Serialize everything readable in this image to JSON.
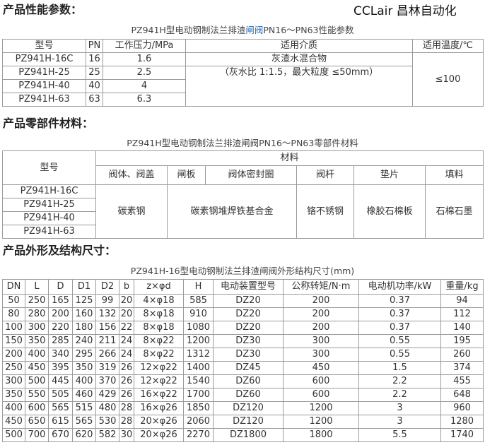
{
  "s1": {
    "heading": "产品性能参数：",
    "caption_a": "PZ941H型电动钢制法兰排渣",
    "caption_b": "闸阀",
    "caption_c": "PN16～PN63性能参数",
    "headers": [
      "型号",
      "PN",
      "工作压力/MPa",
      "适用介质",
      "适用温度/℃"
    ],
    "rows": [
      [
        "PZ941H-16C",
        "16",
        "1.6"
      ],
      [
        "PZ941H-25",
        "25",
        "2.5"
      ],
      [
        "PZ941H-40",
        "40",
        "4"
      ],
      [
        "PZ941H-63",
        "63",
        "6.3"
      ]
    ],
    "medium_line1": "灰渣水混合物",
    "medium_line2": "（灰水比 1:1.5，最大粒度 ≤50mm）",
    "temp": "≤100"
  },
  "s2": {
    "heading": "产品零部件材料：",
    "caption": "PZ941H型电动钢制法兰排渣闸阀PN16～PN63零部件材料",
    "model_header": "型号",
    "material_header": "材料",
    "sub_headers": [
      "阀体、阀盖",
      "闸板",
      "阀体密封圈",
      "阀杆",
      "垫片",
      "填料"
    ],
    "models": [
      "PZ941H-16C",
      "PZ941H-25",
      "PZ941H-40",
      "PZ941H-63"
    ],
    "values": [
      "碳素钢",
      "碳素钢堆焊铁基合金",
      "铬不锈钢",
      "橡胶石棉板",
      "石棉石墨"
    ]
  },
  "s3": {
    "heading": "产品外形及结构尺寸：",
    "caption": "PZ941H-16型电动钢制法兰排渣闸阀外形结构尺寸(mm)",
    "headers": [
      "DN",
      "L",
      "D",
      "D1",
      "D2",
      "b",
      "z×φd",
      "H",
      "电动装置型号",
      "公称转矩/N·m",
      "电动机功率/kW",
      "重量/kg"
    ],
    "rows": [
      [
        "50",
        "250",
        "165",
        "125",
        "99",
        "20",
        "4×φ18",
        "585",
        "DZ20",
        "200",
        "0.37",
        "94"
      ],
      [
        "80",
        "280",
        "200",
        "160",
        "132",
        "20",
        "8×φ18",
        "910",
        "DZ20",
        "200",
        "0.37",
        "112"
      ],
      [
        "100",
        "300",
        "220",
        "180",
        "156",
        "22",
        "8×φ18",
        "1080",
        "DZ20",
        "200",
        "0.37",
        "140"
      ],
      [
        "150",
        "350",
        "285",
        "240",
        "211",
        "24",
        "8×φ22",
        "1200",
        "DZ30",
        "300",
        "0.55",
        "195"
      ],
      [
        "200",
        "400",
        "340",
        "295",
        "266",
        "24",
        "8×φ22",
        "1312",
        "DZ30",
        "300",
        "0.55",
        "260"
      ],
      [
        "250",
        "450",
        "395",
        "350",
        "319",
        "26",
        "12×φ22",
        "1400",
        "DZ45",
        "450",
        "1.5",
        "374"
      ],
      [
        "300",
        "500",
        "445",
        "400",
        "370",
        "26",
        "12×φ22",
        "1540",
        "DZ60",
        "600",
        "2.2",
        "455"
      ],
      [
        "350",
        "550",
        "505",
        "460",
        "429",
        "26",
        "16×φ22",
        "1700",
        "DZ60",
        "600",
        "2.2",
        "648"
      ],
      [
        "400",
        "600",
        "565",
        "515",
        "480",
        "28",
        "16×φ26",
        "1850",
        "DZ120",
        "1200",
        "3",
        "960"
      ],
      [
        "450",
        "650",
        "615",
        "565",
        "530",
        "28",
        "20×φ26",
        "2060",
        "DZ120",
        "1200",
        "3",
        "1280"
      ],
      [
        "500",
        "700",
        "670",
        "620",
        "582",
        "30",
        "20×φ26",
        "2270",
        "DZ1800",
        "1800",
        "5.5",
        "1740"
      ]
    ]
  },
  "watermark": "CCLair 昌林自动化"
}
